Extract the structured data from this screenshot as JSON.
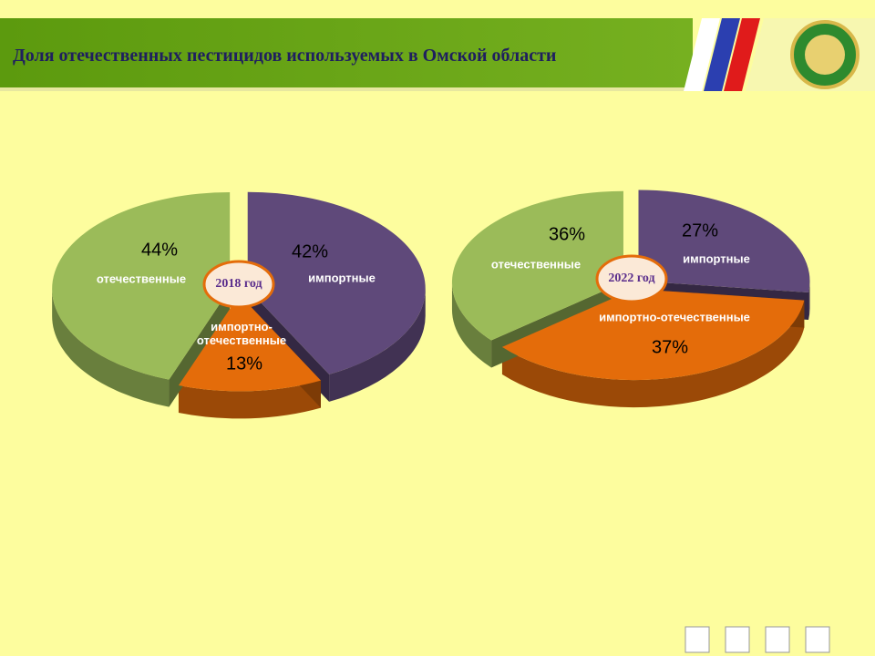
{
  "title": "Доля отечественных пестицидов используемых в Омской области",
  "chart_data": [
    {
      "type": "pie",
      "center_label": "2018 год",
      "categories": [
        "импортные",
        "импортно-отечественные",
        "отечественные"
      ],
      "values": [
        42,
        13,
        44
      ],
      "value_labels": [
        "42%",
        "13%",
        "44%"
      ],
      "colors": [
        "#5f497a",
        "#e46c0a",
        "#9bbb59"
      ]
    },
    {
      "type": "pie",
      "center_label": "2022 год",
      "categories": [
        "импортные",
        "импортно-отечественные",
        "отечественные"
      ],
      "values": [
        27,
        37,
        36
      ],
      "value_labels": [
        "27%",
        "37%",
        "36%"
      ],
      "colors": [
        "#5f497a",
        "#e46c0a",
        "#9bbb59"
      ]
    }
  ]
}
